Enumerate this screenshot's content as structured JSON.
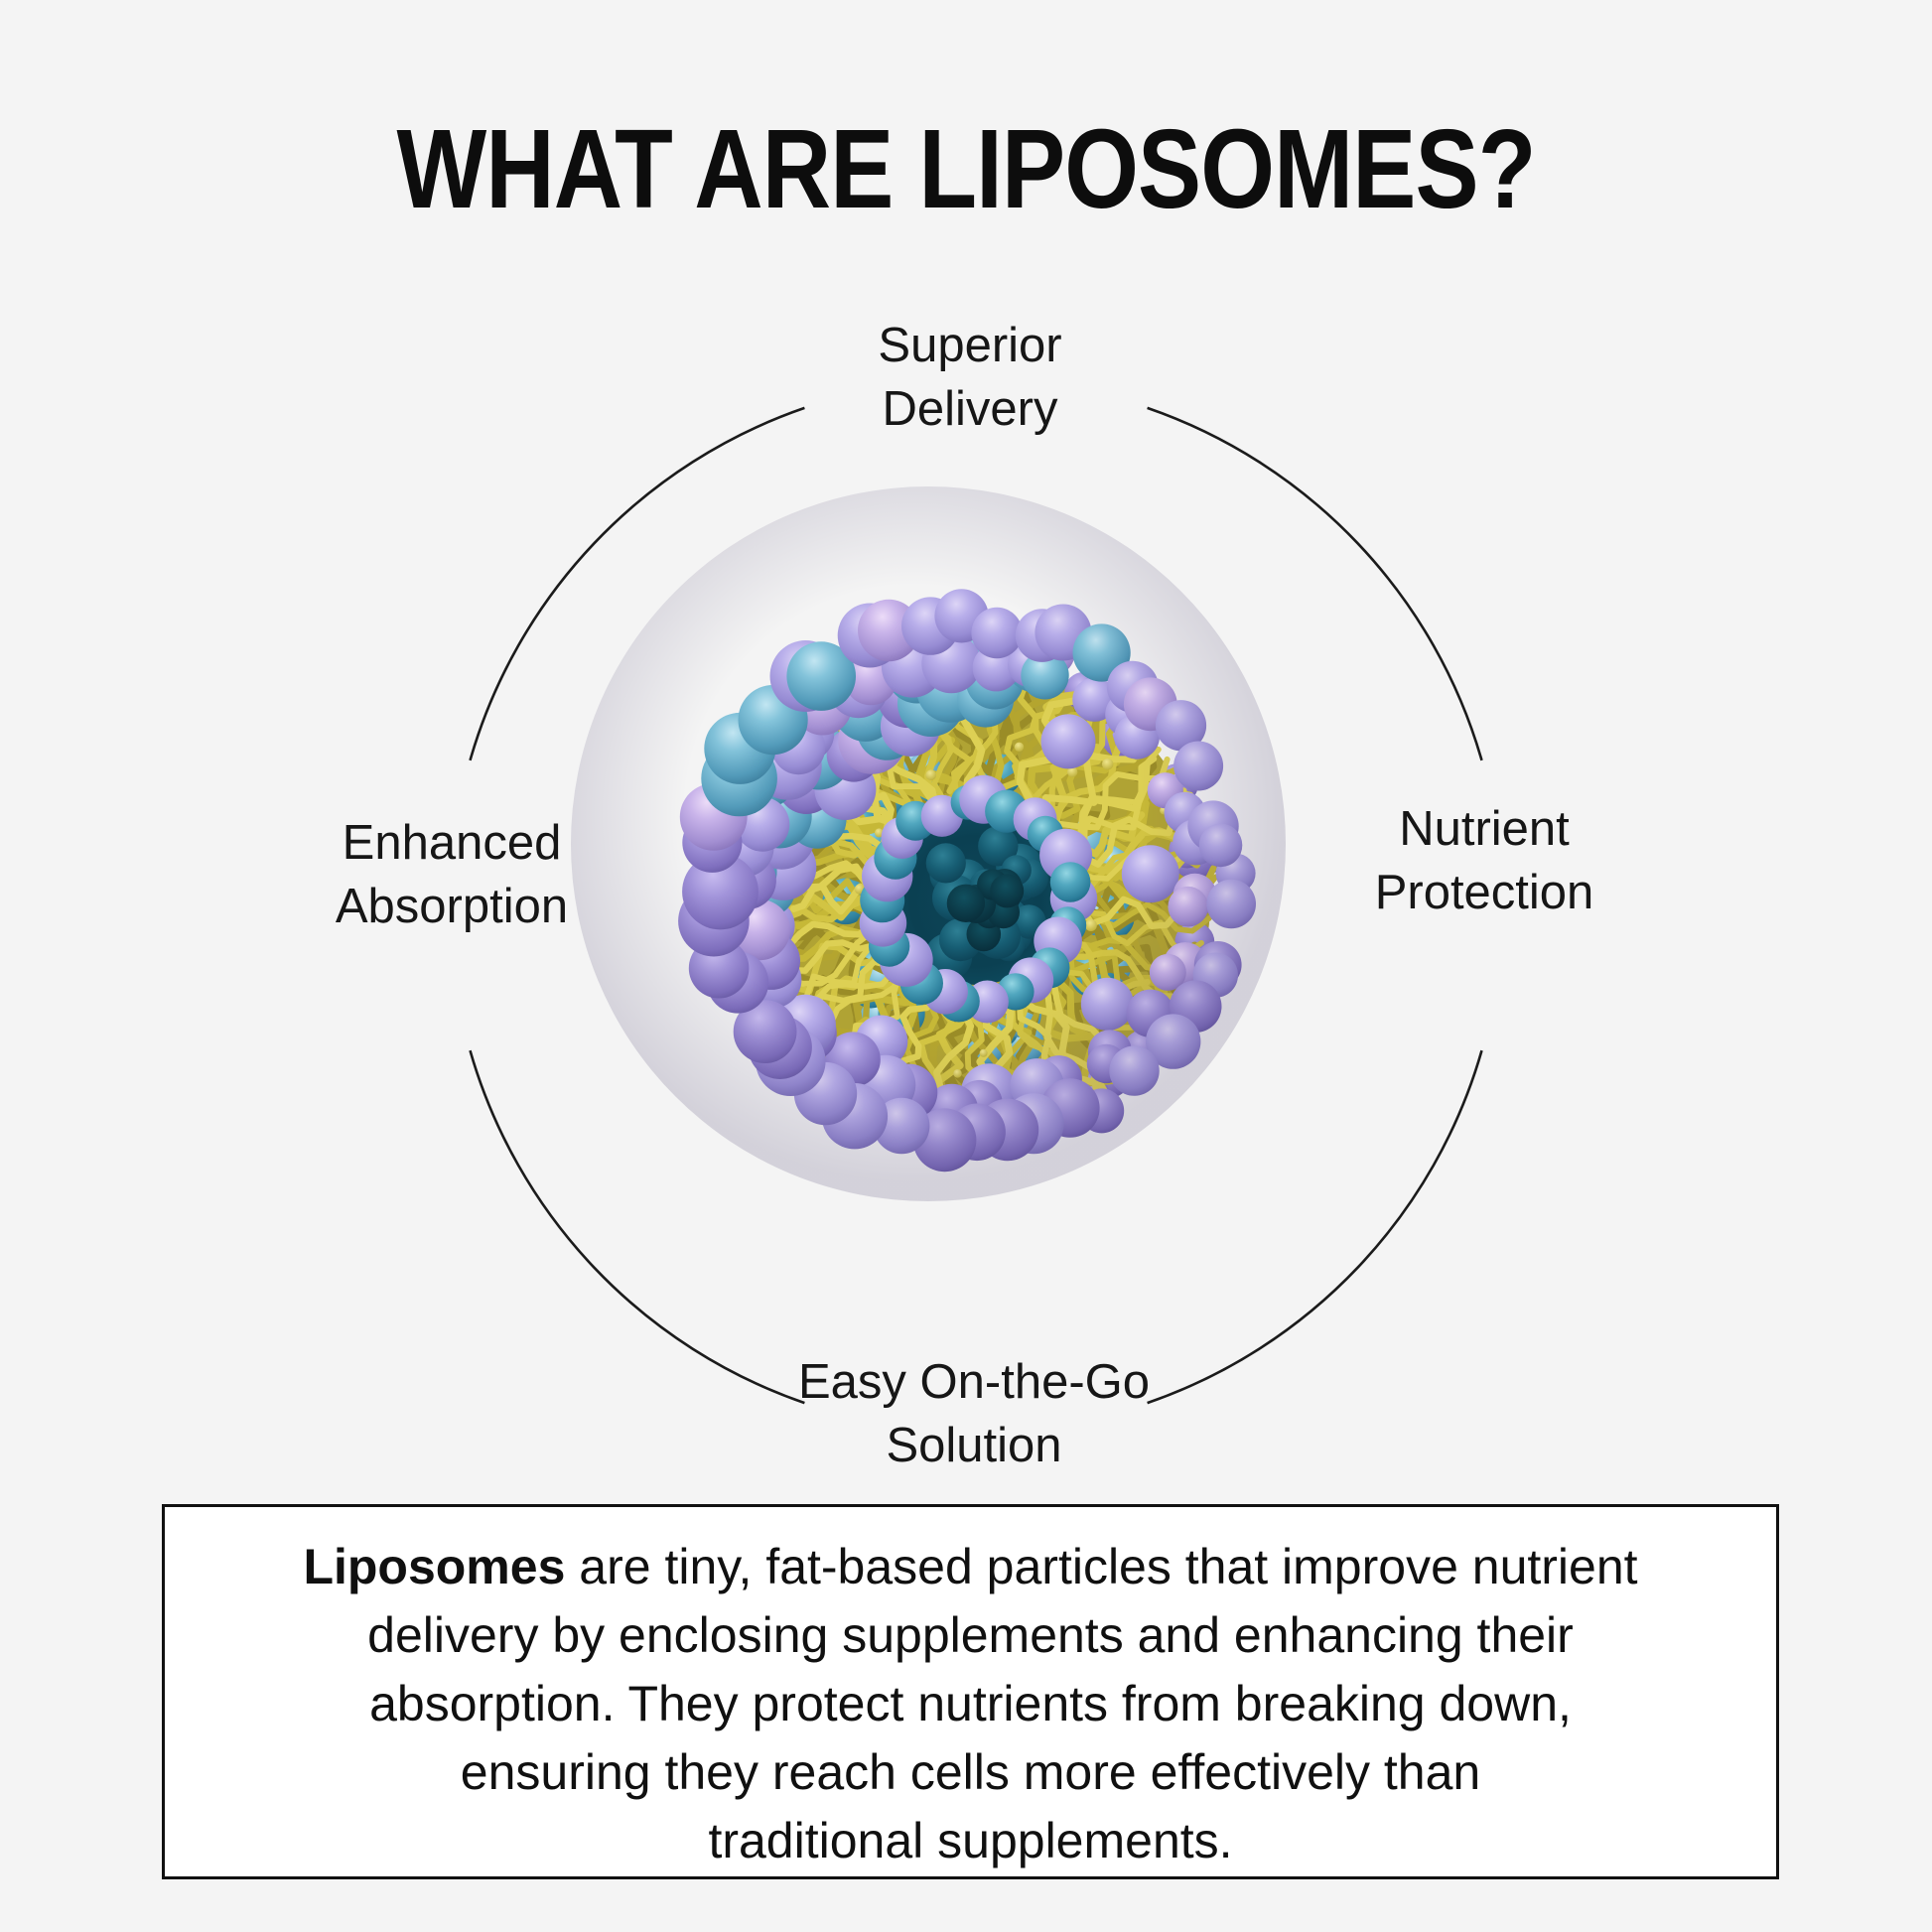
{
  "page": {
    "background": "#f4f4f4",
    "text_color": "#131313"
  },
  "title": "WHAT ARE LIPOSOMES?",
  "diagram": {
    "illustration": "liposome-cross-section-3d",
    "ring_line_color": "#1b1b1b",
    "labels": {
      "top": {
        "line1": "Superior",
        "line2": "Delivery"
      },
      "right": {
        "line1": "Nutrient",
        "line2": "Protection"
      },
      "left": {
        "line1": "Enhanced",
        "line2": "Absorption"
      },
      "bottom": {
        "line1": "Easy On-the-Go",
        "line2": "Solution"
      }
    },
    "colors": {
      "lavender": "#a79fe0",
      "lavender_dark": "#7b6fba",
      "lavender_pink": "#c4b2e8",
      "blue": "#5fa8c9",
      "teal": "#3695b4",
      "tail_yellow": "#d2c443",
      "tail_dark": "#a3952b",
      "tail_base": "#b0a334",
      "core_dark": "#0b4156",
      "dot_yellow": "#e4d766"
    }
  },
  "infobox": {
    "border_color": "#111111",
    "background": "#ffffff",
    "bold_lead": "Liposomes",
    "lines": [
      " are tiny, fat-based particles that improve nutrient",
      "delivery by enclosing supplements and enhancing their",
      "absorption. They protect nutrients from breaking down,",
      "ensuring they reach cells more effectively than",
      "traditional supplements."
    ]
  }
}
